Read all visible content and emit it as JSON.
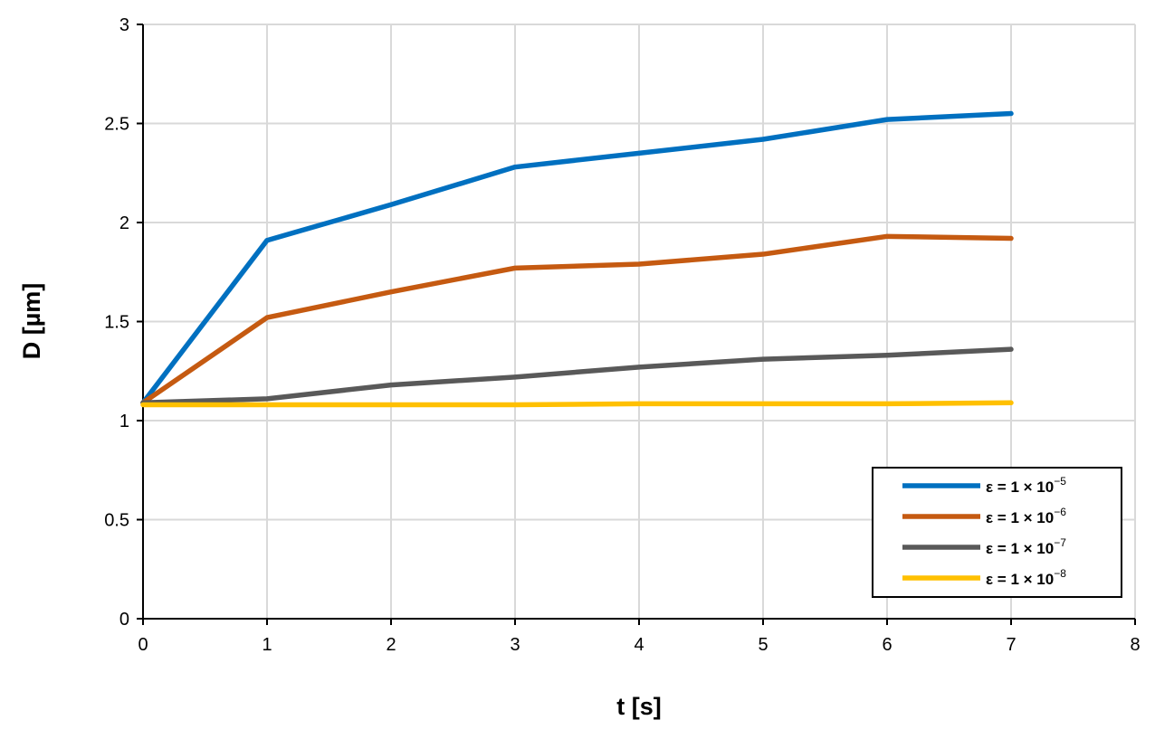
{
  "chart_data": {
    "type": "line",
    "xlabel": "t [s]",
    "ylabel": "D [µm]",
    "xlim": [
      0,
      8
    ],
    "ylim": [
      0,
      3
    ],
    "xticks": [
      "0",
      "1",
      "2",
      "3",
      "4",
      "5",
      "6",
      "7",
      "8"
    ],
    "yticks": [
      "0",
      "0.5",
      "1",
      "1.5",
      "2",
      "2.5",
      "3"
    ],
    "grid": true,
    "legend_position": "bottom-right",
    "x": [
      0,
      1,
      2,
      3,
      4,
      5,
      6,
      7
    ],
    "series": [
      {
        "name": "ε = 1 × 10⁻⁵",
        "label_main": "ε = 1 × 10",
        "label_exp": "−5",
        "color": "#0070C0",
        "values": [
          1.09,
          1.91,
          2.09,
          2.28,
          2.35,
          2.42,
          2.52,
          2.55
        ]
      },
      {
        "name": "ε = 1 × 10⁻⁶",
        "label_main": "ε = 1 × 10",
        "label_exp": "−6",
        "color": "#C55A11",
        "values": [
          1.09,
          1.52,
          1.65,
          1.77,
          1.79,
          1.84,
          1.93,
          1.92
        ]
      },
      {
        "name": "ε = 1 × 10⁻⁷",
        "label_main": "ε = 1 × 10",
        "label_exp": "−7",
        "color": "#595959",
        "values": [
          1.09,
          1.11,
          1.18,
          1.22,
          1.27,
          1.31,
          1.33,
          1.36
        ]
      },
      {
        "name": "ε = 1 × 10⁻⁸",
        "label_main": "ε = 1 × 10",
        "label_exp": "−8",
        "color": "#FFC000",
        "values": [
          1.08,
          1.08,
          1.08,
          1.08,
          1.085,
          1.085,
          1.085,
          1.09
        ]
      }
    ]
  }
}
